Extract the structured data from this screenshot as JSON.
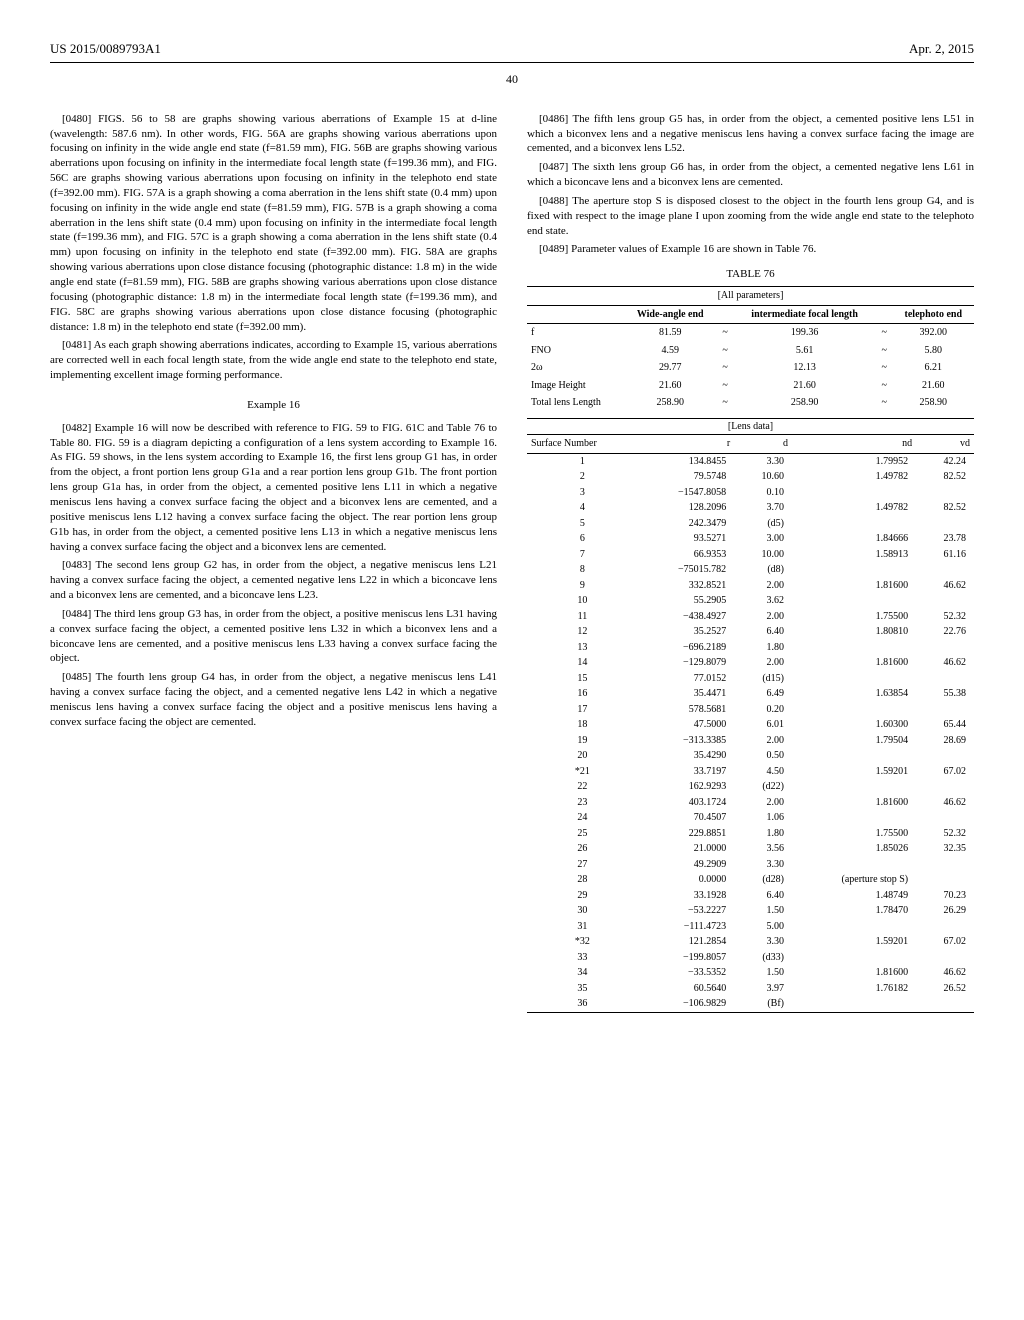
{
  "header": {
    "pubnum": "US 2015/0089793A1",
    "date": "Apr. 2, 2015"
  },
  "pagenum": "40",
  "left": {
    "p0480": "[0480]    FIGS. 56 to 58 are graphs showing various aberrations of Example 15 at d-line (wavelength: 587.6 nm). In other words, FIG. 56A are graphs showing various aberrations upon focusing on infinity in the wide angle end state (f=81.59 mm), FIG. 56B are graphs showing various aberrations upon focusing on infinity in the intermediate focal length state (f=199.36 mm), and FIG. 56C are graphs showing various aberrations upon focusing on infinity in the telephoto end state (f=392.00 mm). FIG. 57A is a graph showing a coma aberration in the lens shift state (0.4 mm) upon focusing on infinity in the wide angle end state (f=81.59 mm), FIG. 57B is a graph showing a coma aberration in the lens shift state (0.4 mm) upon focusing on infinity in the intermediate focal length state (f=199.36 mm), and FIG. 57C is a graph showing a coma aberration in the lens shift state (0.4 mm) upon focusing on infinity in the telephoto end state (f=392.00 mm). FIG. 58A are graphs showing various aberrations upon close distance focusing (photographic distance: 1.8 m) in the wide angle end state (f=81.59 mm), FIG. 58B are graphs showing various aberrations upon close distance focusing (photographic distance: 1.8 m) in the intermediate focal length state (f=199.36 mm), and FIG. 58C are graphs showing various aberrations upon close distance focusing (photographic distance: 1.8 m) in the telephoto end state (f=392.00 mm).",
    "p0481": "[0481]    As each graph showing aberrations indicates, according to Example 15, various aberrations are corrected well in each focal length state, from the wide angle end state to the telephoto end state, implementing excellent image forming performance.",
    "example": "Example 16",
    "p0482": "[0482]    Example 16 will now be described with reference to FIG. 59 to FIG. 61C and Table 76 to Table 80. FIG. 59 is a diagram depicting a configuration of a lens system according to Example 16. As FIG. 59 shows, in the lens system according to Example 16, the first lens group G1 has, in order from the object, a front portion lens group G1a and a rear portion lens group G1b. The front portion lens group G1a has, in order from the object, a cemented positive lens L11 in which a negative meniscus lens having a convex surface facing the object and a biconvex lens are cemented, and a positive meniscus lens L12 having a convex surface facing the object. The rear portion lens group G1b has, in order from the object, a cemented positive lens L13 in which a negative meniscus lens having a convex surface facing the object and a biconvex lens are cemented.",
    "p0483": "[0483]    The second lens group G2 has, in order from the object, a negative meniscus lens L21 having a convex surface facing the object, a cemented negative lens L22 in which a biconcave lens and a biconvex lens are cemented, and a biconcave lens L23.",
    "p0484": "[0484]    The third lens group G3 has, in order from the object, a positive meniscus lens L31 having a convex surface facing the object, a cemented positive lens L32 in which a biconvex lens and a biconcave lens are cemented, and a positive meniscus lens L33 having a convex surface facing the object.",
    "p0485": "[0485]    The fourth lens group G4 has, in order from the object, a negative meniscus lens L41 having a convex surface facing the object, and a cemented negative lens L42 in which a negative meniscus lens having a convex surface facing the object and a positive meniscus lens having a convex surface facing the object are cemented."
  },
  "right": {
    "p0486": "[0486]    The fifth lens group G5 has, in order from the object, a cemented positive lens L51 in which a biconvex lens and a negative meniscus lens having a convex surface facing the image are cemented, and a biconvex lens L52.",
    "p0487": "[0487]    The sixth lens group G6 has, in order from the object, a cemented negative lens L61 in which a biconcave lens and a biconvex lens are cemented.",
    "p0488": "[0488]    The aperture stop S is disposed closest to the object in the fourth lens group G4, and is fixed with respect to the image plane I upon zooming from the wide angle end state to the telephoto end state.",
    "p0489": "[0489]    Parameter values of Example 16 are shown in Table 76.",
    "table76_caption": "TABLE 76",
    "allparams_label": "[All parameters]",
    "allparams_headers": [
      "",
      "Wide-angle end",
      "",
      "intermediate focal length",
      "",
      "telephoto end"
    ],
    "allparams_rows": [
      [
        "f",
        "81.59",
        "~",
        "199.36",
        "~",
        "392.00"
      ],
      [
        "FNO",
        "4.59",
        "~",
        "5.61",
        "~",
        "5.80"
      ],
      [
        "2ω",
        "29.77",
        "~",
        "12.13",
        "~",
        "6.21"
      ],
      [
        "Image Height",
        "21.60",
        "~",
        "21.60",
        "~",
        "21.60"
      ],
      [
        "Total lens Length",
        "258.90",
        "~",
        "258.90",
        "~",
        "258.90"
      ]
    ],
    "lensdata_label": "[Lens data]",
    "lens_headers": [
      "Surface Number",
      "r",
      "d",
      "nd",
      "vd"
    ],
    "lens_rows": [
      [
        "1",
        "134.8455",
        "3.30",
        "1.79952",
        "42.24"
      ],
      [
        "2",
        "79.5748",
        "10.60",
        "1.49782",
        "82.52"
      ],
      [
        "3",
        "−1547.8058",
        "0.10",
        "",
        ""
      ],
      [
        "4",
        "128.2096",
        "3.70",
        "1.49782",
        "82.52"
      ],
      [
        "5",
        "242.3479",
        "(d5)",
        "",
        ""
      ],
      [
        "6",
        "93.5271",
        "3.00",
        "1.84666",
        "23.78"
      ],
      [
        "7",
        "66.9353",
        "10.00",
        "1.58913",
        "61.16"
      ],
      [
        "8",
        "−75015.782",
        "(d8)",
        "",
        ""
      ],
      [
        "9",
        "332.8521",
        "2.00",
        "1.81600",
        "46.62"
      ],
      [
        "10",
        "55.2905",
        "3.62",
        "",
        ""
      ],
      [
        "11",
        "−438.4927",
        "2.00",
        "1.75500",
        "52.32"
      ],
      [
        "12",
        "35.2527",
        "6.40",
        "1.80810",
        "22.76"
      ],
      [
        "13",
        "−696.2189",
        "1.80",
        "",
        ""
      ],
      [
        "14",
        "−129.8079",
        "2.00",
        "1.81600",
        "46.62"
      ],
      [
        "15",
        "77.0152",
        "(d15)",
        "",
        ""
      ],
      [
        "16",
        "35.4471",
        "6.49",
        "1.63854",
        "55.38"
      ],
      [
        "17",
        "578.5681",
        "0.20",
        "",
        ""
      ],
      [
        "18",
        "47.5000",
        "6.01",
        "1.60300",
        "65.44"
      ],
      [
        "19",
        "−313.3385",
        "2.00",
        "1.79504",
        "28.69"
      ],
      [
        "20",
        "35.4290",
        "0.50",
        "",
        ""
      ],
      [
        "*21",
        "33.7197",
        "4.50",
        "1.59201",
        "67.02"
      ],
      [
        "22",
        "162.9293",
        "(d22)",
        "",
        ""
      ],
      [
        "23",
        "403.1724",
        "2.00",
        "1.81600",
        "46.62"
      ],
      [
        "24",
        "70.4507",
        "1.06",
        "",
        ""
      ],
      [
        "25",
        "229.8851",
        "1.80",
        "1.75500",
        "52.32"
      ],
      [
        "26",
        "21.0000",
        "3.56",
        "1.85026",
        "32.35"
      ],
      [
        "27",
        "49.2909",
        "3.30",
        "",
        ""
      ],
      [
        "28",
        "0.0000",
        "(d28)",
        "(aperture stop S)",
        ""
      ],
      [
        "29",
        "33.1928",
        "6.40",
        "1.48749",
        "70.23"
      ],
      [
        "30",
        "−53.2227",
        "1.50",
        "1.78470",
        "26.29"
      ],
      [
        "31",
        "−111.4723",
        "5.00",
        "",
        ""
      ],
      [
        "*32",
        "121.2854",
        "3.30",
        "1.59201",
        "67.02"
      ],
      [
        "33",
        "−199.8057",
        "(d33)",
        "",
        ""
      ],
      [
        "34",
        "−33.5352",
        "1.50",
        "1.81600",
        "46.62"
      ],
      [
        "35",
        "60.5640",
        "3.97",
        "1.76182",
        "26.52"
      ],
      [
        "36",
        "−106.9829",
        "(Bf)",
        "",
        ""
      ]
    ]
  }
}
